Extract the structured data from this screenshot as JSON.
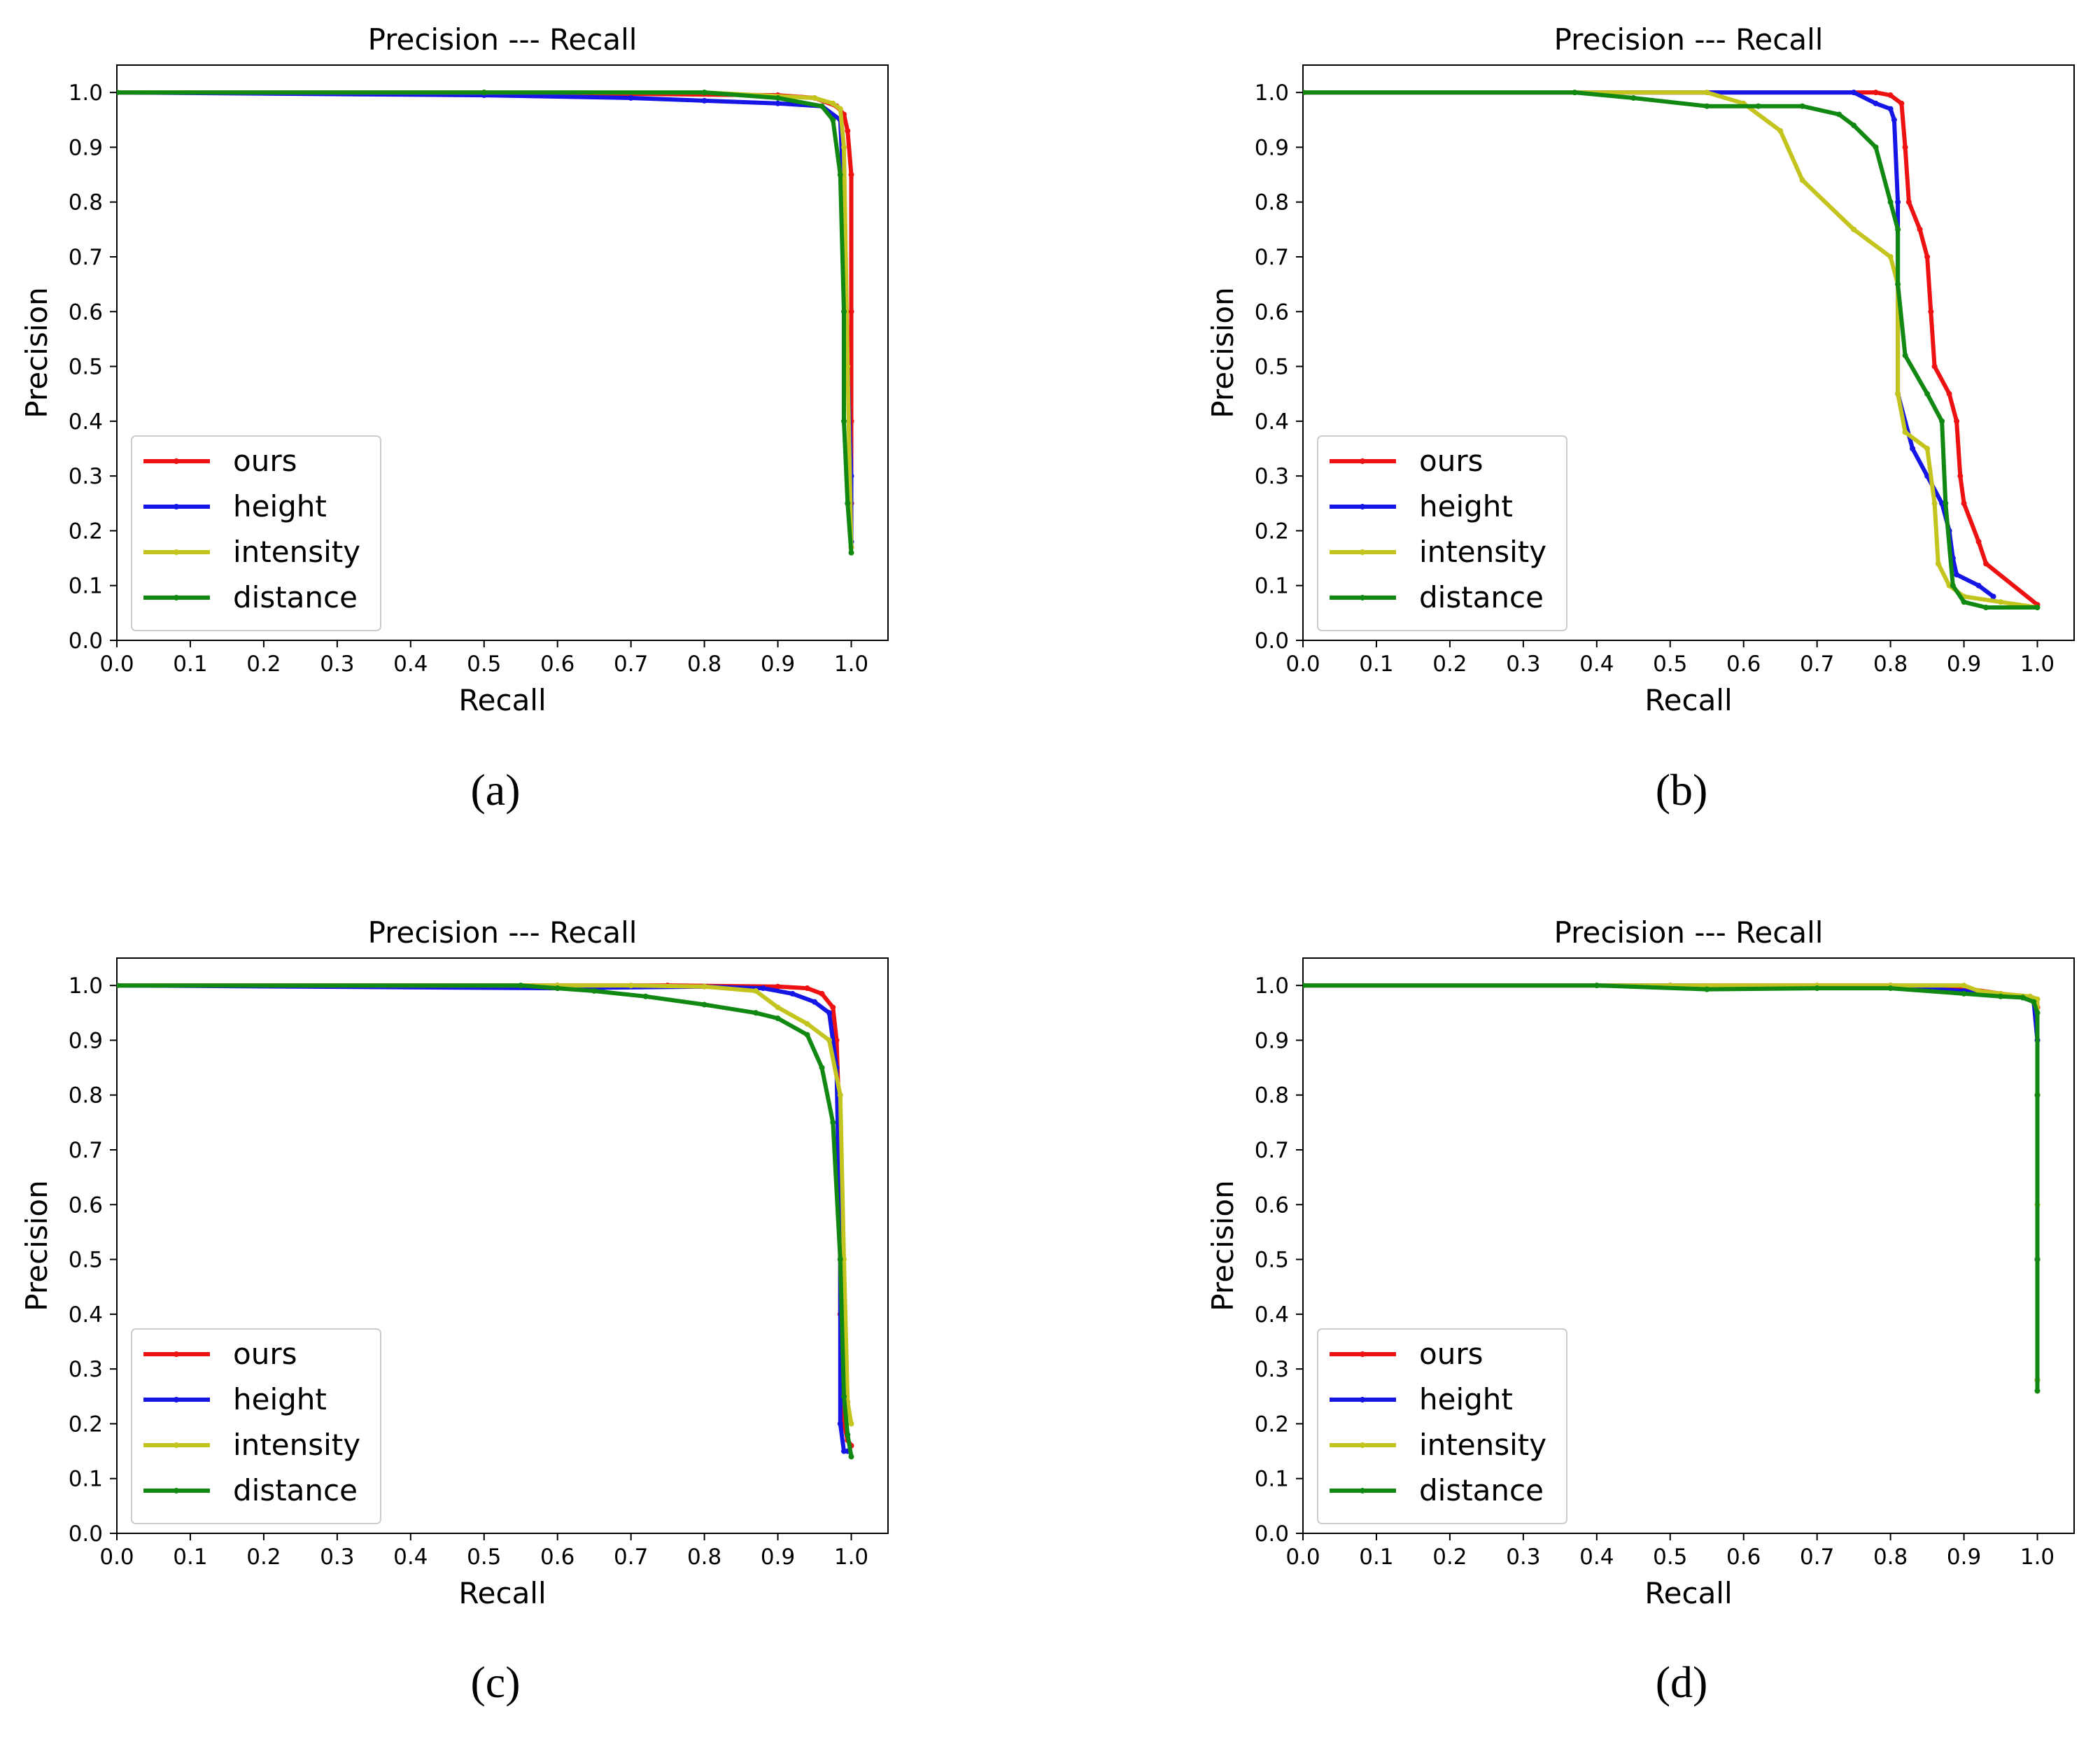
{
  "colors": {
    "ours": "#ee1111",
    "height": "#1515e6",
    "intensity": "#c4c41e",
    "distance": "#118811"
  },
  "chart_data": [
    {
      "type": "line",
      "panel_label": "(a)",
      "title": "Precision --- Recall",
      "xlabel": "Recall",
      "ylabel": "Precision",
      "xlim": [
        0.0,
        1.05
      ],
      "ylim": [
        0.0,
        1.05
      ],
      "xticks": [
        "0.0",
        "0.1",
        "0.2",
        "0.3",
        "0.4",
        "0.5",
        "0.6",
        "0.7",
        "0.8",
        "0.9",
        "1.0"
      ],
      "yticks": [
        "0.0",
        "0.1",
        "0.2",
        "0.3",
        "0.4",
        "0.5",
        "0.6",
        "0.7",
        "0.8",
        "0.9",
        "1.0"
      ],
      "legend": [
        "ours",
        "height",
        "intensity",
        "distance"
      ],
      "legend_loc": "lower-left",
      "series": [
        {
          "name": "ours",
          "color": "#ee1111",
          "x": [
            0,
            0.5,
            0.9,
            0.95,
            0.98,
            0.99,
            0.995,
            1.0,
            1.0,
            1.0,
            1.0,
            1.0
          ],
          "y": [
            1.0,
            1.0,
            0.995,
            0.99,
            0.975,
            0.96,
            0.93,
            0.85,
            0.6,
            0.4,
            0.25,
            0.17
          ]
        },
        {
          "name": "height",
          "color": "#1515e6",
          "x": [
            0,
            0.5,
            0.7,
            0.8,
            0.9,
            0.96,
            0.985,
            0.99,
            0.995,
            1.0,
            1.0
          ],
          "y": [
            1.0,
            0.995,
            0.99,
            0.985,
            0.98,
            0.975,
            0.95,
            0.8,
            0.5,
            0.3,
            0.18
          ]
        },
        {
          "name": "intensity",
          "color": "#c4c41e",
          "x": [
            0,
            0.5,
            0.8,
            0.95,
            0.975,
            0.985,
            0.99,
            0.995,
            1.0
          ],
          "y": [
            1.0,
            1.0,
            1.0,
            0.99,
            0.98,
            0.97,
            0.9,
            0.5,
            0.17
          ]
        },
        {
          "name": "distance",
          "color": "#118811",
          "x": [
            0,
            0.5,
            0.8,
            0.9,
            0.96,
            0.975,
            0.985,
            0.99,
            0.99,
            0.995,
            1.0
          ],
          "y": [
            1.0,
            1.0,
            1.0,
            0.99,
            0.975,
            0.95,
            0.85,
            0.6,
            0.4,
            0.25,
            0.16
          ]
        }
      ]
    },
    {
      "type": "line",
      "panel_label": "(b)",
      "title": "Precision --- Recall",
      "xlabel": "Recall",
      "ylabel": "Precision",
      "xlim": [
        0.0,
        1.05
      ],
      "ylim": [
        0.0,
        1.05
      ],
      "xticks": [
        "0.0",
        "0.1",
        "0.2",
        "0.3",
        "0.4",
        "0.5",
        "0.6",
        "0.7",
        "0.8",
        "0.9",
        "1.0"
      ],
      "yticks": [
        "0.0",
        "0.1",
        "0.2",
        "0.3",
        "0.4",
        "0.5",
        "0.6",
        "0.7",
        "0.8",
        "0.9",
        "1.0"
      ],
      "legend": [
        "ours",
        "height",
        "intensity",
        "distance"
      ],
      "legend_loc": "lower-left",
      "series": [
        {
          "name": "ours",
          "color": "#ee1111",
          "x": [
            0,
            0.78,
            0.8,
            0.815,
            0.82,
            0.825,
            0.84,
            0.85,
            0.855,
            0.86,
            0.88,
            0.89,
            0.895,
            0.9,
            0.92,
            0.93,
            1.0
          ],
          "y": [
            1.0,
            1.0,
            0.995,
            0.98,
            0.9,
            0.8,
            0.75,
            0.7,
            0.6,
            0.5,
            0.45,
            0.4,
            0.3,
            0.25,
            0.18,
            0.14,
            0.065
          ]
        },
        {
          "name": "height",
          "color": "#1515e6",
          "x": [
            0,
            0.75,
            0.78,
            0.8,
            0.805,
            0.81,
            0.81,
            0.83,
            0.85,
            0.87,
            0.88,
            0.885,
            0.89,
            0.92,
            0.94
          ],
          "y": [
            1.0,
            1.0,
            0.98,
            0.97,
            0.95,
            0.8,
            0.45,
            0.35,
            0.3,
            0.25,
            0.2,
            0.15,
            0.12,
            0.1,
            0.08
          ]
        },
        {
          "name": "intensity",
          "color": "#c4c41e",
          "x": [
            0,
            0.55,
            0.6,
            0.65,
            0.68,
            0.75,
            0.8,
            0.81,
            0.81,
            0.82,
            0.85,
            0.86,
            0.865,
            0.88,
            0.9,
            0.95,
            1.0
          ],
          "y": [
            1.0,
            1.0,
            0.98,
            0.93,
            0.84,
            0.75,
            0.7,
            0.65,
            0.45,
            0.38,
            0.35,
            0.25,
            0.14,
            0.1,
            0.08,
            0.07,
            0.06
          ]
        },
        {
          "name": "distance",
          "color": "#118811",
          "x": [
            0,
            0.37,
            0.45,
            0.55,
            0.62,
            0.68,
            0.73,
            0.75,
            0.78,
            0.8,
            0.81,
            0.81,
            0.82,
            0.85,
            0.87,
            0.875,
            0.885,
            0.9,
            0.93,
            1.0
          ],
          "y": [
            1.0,
            1.0,
            0.99,
            0.975,
            0.975,
            0.975,
            0.96,
            0.94,
            0.9,
            0.8,
            0.75,
            0.65,
            0.52,
            0.45,
            0.4,
            0.25,
            0.1,
            0.07,
            0.06,
            0.06
          ]
        }
      ]
    },
    {
      "type": "line",
      "panel_label": "(c)",
      "title": "Precision --- Recall",
      "xlabel": "Recall",
      "ylabel": "Precision",
      "xlim": [
        0.0,
        1.05
      ],
      "ylim": [
        0.0,
        1.05
      ],
      "xticks": [
        "0.0",
        "0.1",
        "0.2",
        "0.3",
        "0.4",
        "0.5",
        "0.6",
        "0.7",
        "0.8",
        "0.9",
        "1.0"
      ],
      "yticks": [
        "0.0",
        "0.1",
        "0.2",
        "0.3",
        "0.4",
        "0.5",
        "0.6",
        "0.7",
        "0.8",
        "0.9",
        "1.0"
      ],
      "legend": [
        "ours",
        "height",
        "intensity",
        "distance"
      ],
      "legend_loc": "lower-left",
      "series": [
        {
          "name": "ours",
          "color": "#ee1111",
          "x": [
            0,
            0.6,
            0.75,
            0.9,
            0.94,
            0.96,
            0.975,
            0.98,
            0.985,
            0.985,
            0.99,
            0.995,
            1.0
          ],
          "y": [
            1.0,
            1.0,
            1.0,
            0.998,
            0.995,
            0.985,
            0.96,
            0.9,
            0.7,
            0.4,
            0.2,
            0.17,
            0.16
          ]
        },
        {
          "name": "height",
          "color": "#1515e6",
          "x": [
            0,
            0.6,
            0.8,
            0.88,
            0.92,
            0.95,
            0.97,
            0.98,
            0.985,
            0.985,
            0.99,
            0.995
          ],
          "y": [
            1.0,
            0.995,
            0.998,
            0.995,
            0.985,
            0.97,
            0.95,
            0.85,
            0.5,
            0.2,
            0.15,
            0.15
          ]
        },
        {
          "name": "intensity",
          "color": "#c4c41e",
          "x": [
            0,
            0.6,
            0.7,
            0.8,
            0.87,
            0.9,
            0.94,
            0.97,
            0.985,
            0.99,
            0.995,
            1.0
          ],
          "y": [
            1.0,
            1.0,
            1.0,
            0.998,
            0.99,
            0.96,
            0.93,
            0.9,
            0.8,
            0.5,
            0.24,
            0.2
          ]
        },
        {
          "name": "distance",
          "color": "#118811",
          "x": [
            0,
            0.55,
            0.6,
            0.65,
            0.72,
            0.8,
            0.87,
            0.9,
            0.94,
            0.96,
            0.975,
            0.985,
            0.99,
            0.995,
            1.0
          ],
          "y": [
            1.0,
            1.0,
            0.995,
            0.99,
            0.98,
            0.965,
            0.95,
            0.94,
            0.91,
            0.85,
            0.75,
            0.5,
            0.25,
            0.18,
            0.14
          ]
        }
      ]
    },
    {
      "type": "line",
      "panel_label": "(d)",
      "title": "Precision --- Recall",
      "xlabel": "Recall",
      "ylabel": "Precision",
      "xlim": [
        0.0,
        1.05
      ],
      "ylim": [
        0.0,
        1.05
      ],
      "xticks": [
        "0.0",
        "0.1",
        "0.2",
        "0.3",
        "0.4",
        "0.5",
        "0.6",
        "0.7",
        "0.8",
        "0.9",
        "1.0"
      ],
      "yticks": [
        "0.0",
        "0.1",
        "0.2",
        "0.3",
        "0.4",
        "0.5",
        "0.6",
        "0.7",
        "0.8",
        "0.9",
        "1.0"
      ],
      "legend": [
        "ours",
        "height",
        "intensity",
        "distance"
      ],
      "legend_loc": "lower-left",
      "series": [
        {
          "name": "ours",
          "color": "#ee1111",
          "x": [
            0,
            0.5,
            0.8,
            0.9,
            0.95,
            0.98,
            0.995,
            1.0,
            1.0,
            1.0,
            1.0
          ],
          "y": [
            1.0,
            1.0,
            1.0,
            0.995,
            0.985,
            0.98,
            0.975,
            0.96,
            0.8,
            0.5,
            0.28
          ]
        },
        {
          "name": "height",
          "color": "#1515e6",
          "x": [
            0,
            0.5,
            0.8,
            0.9,
            0.95,
            0.98,
            0.995,
            1.0,
            1.0,
            1.0
          ],
          "y": [
            1.0,
            1.0,
            0.998,
            0.99,
            0.982,
            0.978,
            0.97,
            0.9,
            0.5,
            0.28
          ]
        },
        {
          "name": "intensity",
          "color": "#c4c41e",
          "x": [
            0,
            0.5,
            0.7,
            0.8,
            0.9,
            0.92,
            0.95,
            0.99,
            1.0,
            1.0,
            1.0
          ],
          "y": [
            1.0,
            1.0,
            1.0,
            1.0,
            1.0,
            0.99,
            0.985,
            0.98,
            0.975,
            0.6,
            0.28
          ]
        },
        {
          "name": "distance",
          "color": "#118811",
          "x": [
            0,
            0.4,
            0.55,
            0.7,
            0.8,
            0.9,
            0.95,
            0.98,
            0.995,
            1.0,
            1.0,
            1.0,
            1.0
          ],
          "y": [
            1.0,
            1.0,
            0.993,
            0.995,
            0.995,
            0.985,
            0.98,
            0.978,
            0.97,
            0.95,
            0.8,
            0.5,
            0.26
          ]
        }
      ]
    }
  ]
}
